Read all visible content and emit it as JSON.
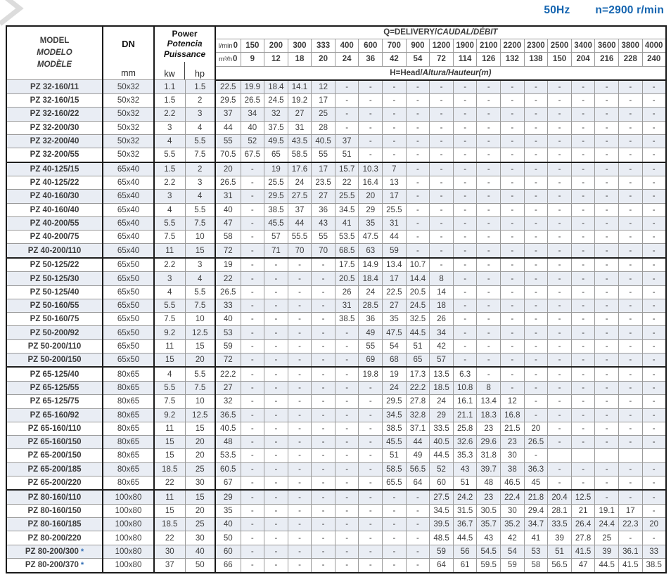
{
  "page": {
    "frequency": "50Hz",
    "speed": "n=2900 r/min"
  },
  "style": {
    "accent_blue": "#1565b0",
    "row_band": "#e9edf4",
    "grid_gray": "#9b9b9b",
    "line_dark": "#1a1a1a"
  },
  "corner_mark": "chevron-decoration",
  "table": {
    "star_symbol": "*",
    "header": {
      "model_lines": [
        "MODEL",
        "MODELO",
        "MODÈLE"
      ],
      "dn": "DN",
      "dn_unit": "mm",
      "power_lines": [
        "Power",
        "Potencia",
        "Puissance"
      ],
      "kw": "kw",
      "hp": "hp",
      "q_title_main": "Q=DELIVERY/",
      "q_title_italic": "CAUDAL/DÉBIT",
      "lmin_label": "l/min",
      "m3h_label": "m³/h",
      "lmin": [
        "0",
        "150",
        "200",
        "300",
        "333",
        "400",
        "600",
        "700",
        "900",
        "1200",
        "1900",
        "2100",
        "2200",
        "2300",
        "2500",
        "3400",
        "3600",
        "3800",
        "4000"
      ],
      "m3h": [
        "0",
        "9",
        "12",
        "18",
        "20",
        "24",
        "36",
        "42",
        "54",
        "72",
        "114",
        "126",
        "132",
        "138",
        "150",
        "204",
        "216",
        "228",
        "240"
      ],
      "head_title_main": "H=Head/",
      "head_title_italic": "Altura/Hauteur(m)"
    },
    "rows": [
      {
        "model": "PZ 32-160/11",
        "star": false,
        "dn": "50x32",
        "kw": "1.1",
        "hp": "1.5",
        "values": [
          "22.5",
          "19.9",
          "18.4",
          "14.1",
          "12",
          "-",
          "-",
          "-",
          "-",
          "-",
          "-",
          "-",
          "-",
          "-",
          "-",
          "-",
          "-",
          "-",
          "-"
        ]
      },
      {
        "model": "PZ 32-160/15",
        "star": false,
        "dn": "50x32",
        "kw": "1.5",
        "hp": "2",
        "values": [
          "29.5",
          "26.5",
          "24.5",
          "19.2",
          "17",
          "-",
          "-",
          "-",
          "-",
          "-",
          "-",
          "-",
          "-",
          "-",
          "-",
          "-",
          "-",
          "-",
          "-"
        ]
      },
      {
        "model": "PZ 32-160/22",
        "star": false,
        "dn": "50x32",
        "kw": "2.2",
        "hp": "3",
        "values": [
          "37",
          "34",
          "32",
          "27",
          "25",
          "-",
          "-",
          "-",
          "-",
          "-",
          "-",
          "-",
          "-",
          "-",
          "-",
          "-",
          "-",
          "-",
          "-"
        ]
      },
      {
        "model": "PZ 32-200/30",
        "star": false,
        "dn": "50x32",
        "kw": "3",
        "hp": "4",
        "values": [
          "44",
          "40",
          "37.5",
          "31",
          "28",
          "-",
          "-",
          "-",
          "-",
          "-",
          "-",
          "-",
          "-",
          "-",
          "-",
          "-",
          "-",
          "-",
          "-"
        ]
      },
      {
        "model": "PZ 32-200/40",
        "star": false,
        "dn": "50x32",
        "kw": "4",
        "hp": "5.5",
        "values": [
          "55",
          "52",
          "49.5",
          "43.5",
          "40.5",
          "37",
          "-",
          "-",
          "-",
          "-",
          "-",
          "-",
          "-",
          "-",
          "-",
          "-",
          "-",
          "-",
          "-"
        ]
      },
      {
        "model": "PZ 32-200/55",
        "star": false,
        "dn": "50x32",
        "kw": "5.5",
        "hp": "7.5",
        "values": [
          "70.5",
          "67.5",
          "65",
          "58.5",
          "55",
          "51",
          "-",
          "-",
          "-",
          "-",
          "-",
          "-",
          "-",
          "-",
          "-",
          "-",
          "-",
          "-",
          "-"
        ]
      },
      {
        "model": "PZ 40-125/15",
        "star": false,
        "dn": "65x40",
        "kw": "1.5",
        "hp": "2",
        "values": [
          "20",
          "-",
          "19",
          "17.6",
          "17",
          "15.7",
          "10.3",
          "7",
          "-",
          "-",
          "-",
          "-",
          "-",
          "-",
          "-",
          "-",
          "-",
          "-",
          "-"
        ]
      },
      {
        "model": "PZ 40-125/22",
        "star": false,
        "dn": "65x40",
        "kw": "2.2",
        "hp": "3",
        "values": [
          "26.5",
          "-",
          "25.5",
          "24",
          "23.5",
          "22",
          "16.4",
          "13",
          "-",
          "-",
          "-",
          "-",
          "-",
          "-",
          "-",
          "-",
          "-",
          "-",
          "-"
        ]
      },
      {
        "model": "PZ 40-160/30",
        "star": false,
        "dn": "65x40",
        "kw": "3",
        "hp": "4",
        "values": [
          "31",
          "-",
          "29.5",
          "27.5",
          "27",
          "25.5",
          "20",
          "17",
          "-",
          "-",
          "-",
          "-",
          "-",
          "-",
          "-",
          "-",
          "-",
          "-",
          "-"
        ]
      },
      {
        "model": "PZ 40-160/40",
        "star": false,
        "dn": "65x40",
        "kw": "4",
        "hp": "5.5",
        "values": [
          "40",
          "-",
          "38.5",
          "37",
          "36",
          "34.5",
          "29",
          "25.5",
          "-",
          "-",
          "-",
          "-",
          "-",
          "-",
          "-",
          "-",
          "-",
          "-",
          "-"
        ]
      },
      {
        "model": "PZ 40-200/55",
        "star": false,
        "dn": "65x40",
        "kw": "5.5",
        "hp": "7.5",
        "values": [
          "47",
          "-",
          "45.5",
          "44",
          "43",
          "41",
          "35",
          "31",
          "-",
          "-",
          "-",
          "-",
          "-",
          "-",
          "-",
          "-",
          "-",
          "-",
          "-"
        ]
      },
      {
        "model": "PZ 40-200/75",
        "star": false,
        "dn": "65x40",
        "kw": "7.5",
        "hp": "10",
        "values": [
          "58",
          "-",
          "57",
          "55.5",
          "55",
          "53.5",
          "47.5",
          "44",
          "-",
          "-",
          "-",
          "-",
          "-",
          "-",
          "-",
          "-",
          "-",
          "-",
          "-"
        ]
      },
      {
        "model": "PZ 40-200/110",
        "star": false,
        "dn": "65x40",
        "kw": "11",
        "hp": "15",
        "values": [
          "72",
          "-",
          "71",
          "70",
          "70",
          "68.5",
          "63",
          "59",
          "-",
          "-",
          "-",
          "-",
          "-",
          "-",
          "-",
          "-",
          "-",
          "-",
          "-"
        ]
      },
      {
        "model": "PZ 50-125/22",
        "star": false,
        "dn": "65x50",
        "kw": "2.2",
        "hp": "3",
        "values": [
          "19",
          "-",
          "-",
          "-",
          "-",
          "17.5",
          "14.9",
          "13.4",
          "10.7",
          "-",
          "-",
          "-",
          "-",
          "-",
          "-",
          "-",
          "-",
          "-",
          "-"
        ]
      },
      {
        "model": "PZ 50-125/30",
        "star": false,
        "dn": "65x50",
        "kw": "3",
        "hp": "4",
        "values": [
          "22",
          "-",
          "-",
          "-",
          "-",
          "20.5",
          "18.4",
          "17",
          "14.4",
          "8",
          "-",
          "-",
          "-",
          "-",
          "-",
          "-",
          "-",
          "-",
          "-"
        ]
      },
      {
        "model": "PZ 50-125/40",
        "star": false,
        "dn": "65x50",
        "kw": "4",
        "hp": "5.5",
        "values": [
          "26.5",
          "-",
          "-",
          "-",
          "-",
          "26",
          "24",
          "22.5",
          "20.5",
          "14",
          "-",
          "-",
          "-",
          "-",
          "-",
          "-",
          "-",
          "-",
          "-"
        ]
      },
      {
        "model": "PZ 50-160/55",
        "star": false,
        "dn": "65x50",
        "kw": "5.5",
        "hp": "7.5",
        "values": [
          "33",
          "-",
          "-",
          "-",
          "-",
          "31",
          "28.5",
          "27",
          "24.5",
          "18",
          "-",
          "-",
          "-",
          "-",
          "-",
          "-",
          "-",
          "-",
          "-"
        ]
      },
      {
        "model": "PZ 50-160/75",
        "star": false,
        "dn": "65x50",
        "kw": "7.5",
        "hp": "10",
        "values": [
          "40",
          "-",
          "-",
          "-",
          "-",
          "38.5",
          "36",
          "35",
          "32.5",
          "26",
          "-",
          "-",
          "-",
          "-",
          "-",
          "-",
          "-",
          "-",
          "-"
        ]
      },
      {
        "model": "PZ 50-200/92",
        "star": false,
        "dn": "65x50",
        "kw": "9.2",
        "hp": "12.5",
        "values": [
          "53",
          "-",
          "-",
          "-",
          "-",
          "-",
          "49",
          "47.5",
          "44.5",
          "34",
          "-",
          "-",
          "-",
          "-",
          "-",
          "-",
          "-",
          "-",
          "-"
        ]
      },
      {
        "model": "PZ 50-200/110",
        "star": false,
        "dn": "65x50",
        "kw": "11",
        "hp": "15",
        "values": [
          "59",
          "-",
          "-",
          "-",
          "-",
          "-",
          "55",
          "54",
          "51",
          "42",
          "-",
          "-",
          "-",
          "-",
          "-",
          "-",
          "-",
          "-",
          "-"
        ]
      },
      {
        "model": "PZ 50-200/150",
        "star": false,
        "dn": "65x50",
        "kw": "15",
        "hp": "20",
        "values": [
          "72",
          "-",
          "-",
          "-",
          "-",
          "-",
          "69",
          "68",
          "65",
          "57",
          "-",
          "-",
          "-",
          "-",
          "-",
          "-",
          "-",
          "-",
          "-"
        ]
      },
      {
        "model": "PZ 65-125/40",
        "star": false,
        "dn": "80x65",
        "kw": "4",
        "hp": "5.5",
        "values": [
          "22.2",
          "-",
          "-",
          "-",
          "-",
          "-",
          "19.8",
          "19",
          "17.3",
          "13.5",
          "6.3",
          "-",
          "-",
          "-",
          "-",
          "-",
          "-",
          "-",
          "-"
        ]
      },
      {
        "model": "PZ 65-125/55",
        "star": false,
        "dn": "80x65",
        "kw": "5.5",
        "hp": "7.5",
        "values": [
          "27",
          "-",
          "-",
          "-",
          "-",
          "-",
          "-",
          "24",
          "22.2",
          "18.5",
          "10.8",
          "8",
          "-",
          "-",
          "-",
          "-",
          "-",
          "-",
          "-"
        ]
      },
      {
        "model": "PZ 65-125/75",
        "star": false,
        "dn": "80x65",
        "kw": "7.5",
        "hp": "10",
        "values": [
          "32",
          "-",
          "-",
          "-",
          "-",
          "-",
          "-",
          "29.5",
          "27.8",
          "24",
          "16.1",
          "13.4",
          "12",
          "-",
          "-",
          "-",
          "-",
          "-",
          "-"
        ]
      },
      {
        "model": "PZ 65-160/92",
        "star": false,
        "dn": "80x65",
        "kw": "9.2",
        "hp": "12.5",
        "values": [
          "36.5",
          "-",
          "-",
          "-",
          "-",
          "-",
          "-",
          "34.5",
          "32.8",
          "29",
          "21.1",
          "18.3",
          "16.8",
          "-",
          "-",
          "-",
          "-",
          "-",
          "-"
        ]
      },
      {
        "model": "PZ 65-160/110",
        "star": false,
        "dn": "80x65",
        "kw": "11",
        "hp": "15",
        "values": [
          "40.5",
          "-",
          "-",
          "-",
          "-",
          "-",
          "-",
          "38.5",
          "37.1",
          "33.5",
          "25.8",
          "23",
          "21.5",
          "20",
          "-",
          "-",
          "-",
          "-",
          "-"
        ]
      },
      {
        "model": "PZ 65-160/150",
        "star": false,
        "dn": "80x65",
        "kw": "15",
        "hp": "20",
        "values": [
          "48",
          "-",
          "-",
          "-",
          "-",
          "-",
          "-",
          "45.5",
          "44",
          "40.5",
          "32.6",
          "29.6",
          "23",
          "26.5",
          "-",
          "-",
          "-",
          "-",
          "-"
        ]
      },
      {
        "model": "PZ 65-200/150",
        "star": false,
        "dn": "80x65",
        "kw": "15",
        "hp": "20",
        "values": [
          "53.5",
          "-",
          "-",
          "-",
          "-",
          "-",
          "-",
          "51",
          "49",
          "44.5",
          "35.3",
          "31.8",
          "30",
          "-",
          "",
          "",
          "",
          "",
          ""
        ]
      },
      {
        "model": "PZ 65-200/185",
        "star": false,
        "dn": "80x65",
        "kw": "18.5",
        "hp": "25",
        "values": [
          "60.5",
          "-",
          "-",
          "-",
          "-",
          "-",
          "-",
          "58.5",
          "56.5",
          "52",
          "43",
          "39.7",
          "38",
          "36.3",
          "-",
          "-",
          "-",
          "-",
          "-"
        ]
      },
      {
        "model": "PZ 65-200/220",
        "star": false,
        "dn": "80x65",
        "kw": "22",
        "hp": "30",
        "values": [
          "67",
          "-",
          "-",
          "-",
          "-",
          "-",
          "-",
          "65.5",
          "64",
          "60",
          "51",
          "48",
          "46.5",
          "45",
          "-",
          "-",
          "-",
          "-",
          "-"
        ]
      },
      {
        "model": "PZ 80-160/110",
        "star": false,
        "dn": "100x80",
        "kw": "11",
        "hp": "15",
        "values": [
          "29",
          "-",
          "-",
          "-",
          "-",
          "-",
          "-",
          "-",
          "-",
          "27.5",
          "24.2",
          "23",
          "22.4",
          "21.8",
          "20.4",
          "12.5",
          "-",
          "-",
          "-"
        ]
      },
      {
        "model": "PZ 80-160/150",
        "star": false,
        "dn": "100x80",
        "kw": "15",
        "hp": "20",
        "values": [
          "35",
          "-",
          "-",
          "-",
          "-",
          "-",
          "-",
          "-",
          "-",
          "34.5",
          "31.5",
          "30.5",
          "30",
          "29.4",
          "28.1",
          "21",
          "19.1",
          "17",
          "-"
        ]
      },
      {
        "model": "PZ 80-160/185",
        "star": false,
        "dn": "100x80",
        "kw": "18.5",
        "hp": "25",
        "values": [
          "40",
          "-",
          "-",
          "-",
          "-",
          "-",
          "-",
          "-",
          "-",
          "39.5",
          "36.7",
          "35.7",
          "35.2",
          "34.7",
          "33.5",
          "26.4",
          "24.4",
          "22.3",
          "20"
        ]
      },
      {
        "model": "PZ 80-200/220",
        "star": false,
        "dn": "100x80",
        "kw": "22",
        "hp": "30",
        "values": [
          "50",
          "-",
          "-",
          "-",
          "-",
          "-",
          "-",
          "-",
          "-",
          "48.5",
          "44.5",
          "43",
          "42",
          "41",
          "39",
          "27.8",
          "25",
          "-",
          "-"
        ]
      },
      {
        "model": "PZ 80-200/300",
        "star": true,
        "dn": "100x80",
        "kw": "30",
        "hp": "40",
        "values": [
          "60",
          "-",
          "-",
          "-",
          "-",
          "-",
          "-",
          "-",
          "-",
          "59",
          "56",
          "54.5",
          "54",
          "53",
          "51",
          "41.5",
          "39",
          "36.1",
          "33"
        ]
      },
      {
        "model": "PZ 80-200/370",
        "star": true,
        "dn": "100x80",
        "kw": "37",
        "hp": "50",
        "values": [
          "66",
          "-",
          "-",
          "-",
          "-",
          "-",
          "-",
          "-",
          "-",
          "64",
          "61",
          "59.5",
          "59",
          "58",
          "56.5",
          "47",
          "44.5",
          "41.5",
          "38.5"
        ]
      }
    ]
  }
}
